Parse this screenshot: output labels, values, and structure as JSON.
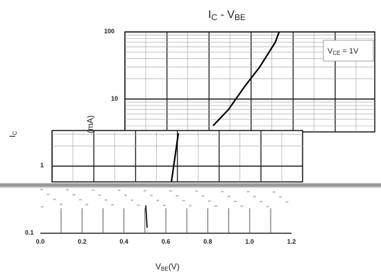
{
  "chart_data": {
    "type": "line",
    "title_main": "I",
    "title_main_sub": "C",
    "title_sep": " - V",
    "title_sep_sub": "BE",
    "xlabel_main": "V",
    "xlabel_sub": "BE",
    "xlabel_unit": "(V)",
    "ylabel_main": "I",
    "ylabel_sub": "C",
    "ylabel_unit": "(mA)",
    "y_scale": "log",
    "xlim": [
      0.0,
      1.2
    ],
    "ylim": [
      0.1,
      100
    ],
    "x_ticks": [
      "0.0",
      "0.2",
      "0.4",
      "0.6",
      "0.8",
      "1.0",
      "1.2"
    ],
    "y_ticks": [
      "0.1",
      "1",
      "10",
      "100"
    ],
    "grid": true,
    "legend_box": "top-right",
    "annotation": {
      "main": "V",
      "sub": "CE",
      "rest": " = 1V"
    },
    "series": [
      {
        "x": [
          0.64,
          0.72,
          0.8,
          0.88,
          0.96,
          1.04,
          1.12,
          1.14
        ],
        "y": [
          1,
          2,
          4,
          7,
          15,
          30,
          70,
          100
        ]
      }
    ]
  }
}
